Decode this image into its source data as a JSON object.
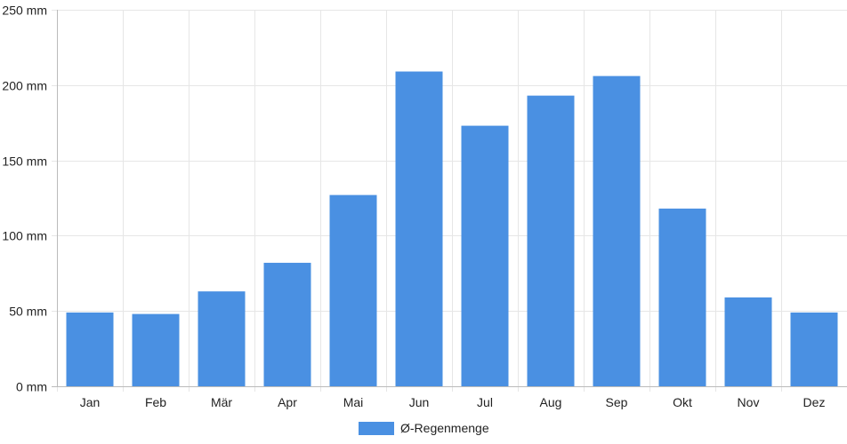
{
  "chart_data": {
    "type": "bar",
    "categories": [
      "Jan",
      "Feb",
      "Mär",
      "Apr",
      "Mai",
      "Jun",
      "Jul",
      "Aug",
      "Sep",
      "Okt",
      "Nov",
      "Dez"
    ],
    "series": [
      {
        "name": "Ø-Regenmenge",
        "values": [
          49,
          48,
          63,
          82,
          127,
          209,
          173,
          193,
          206,
          118,
          59,
          49
        ]
      }
    ],
    "y_unit": "mm",
    "ylim": [
      0,
      250
    ],
    "yticks": [
      0,
      50,
      100,
      150,
      200,
      250
    ],
    "grid": true,
    "legend_position": "bottom-center",
    "colors": {
      "bar": "#4a90e2"
    }
  }
}
